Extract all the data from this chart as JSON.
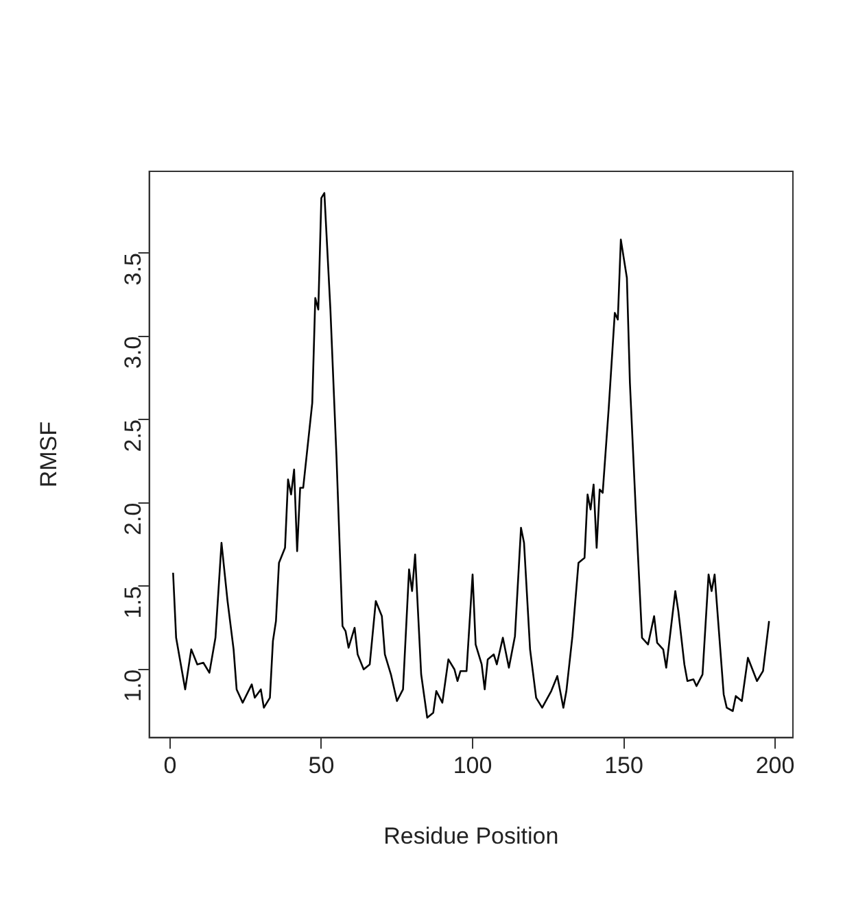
{
  "chart_data": {
    "type": "line",
    "xlabel": "Residue Position",
    "ylabel": "RMSF",
    "xlim": [
      -6.88,
      205.88
    ],
    "ylim": [
      0.59,
      3.99
    ],
    "xticks": [
      0,
      50,
      100,
      150,
      200
    ],
    "yticks": [
      {
        "value": 1,
        "label": "1.0"
      },
      1.5,
      {
        "value": 2,
        "label": "2.0"
      },
      2.5,
      {
        "value": 3,
        "label": "3.0"
      },
      3.5
    ],
    "grid": false,
    "legend": false,
    "marker": "none",
    "line_style": "solid",
    "series": [
      {
        "color": "#000000",
        "x": [
          1,
          2,
          5,
          7,
          9,
          11,
          13,
          15,
          17,
          19,
          21,
          22,
          24,
          27,
          28,
          30,
          31,
          33,
          34,
          35,
          36,
          38,
          39,
          40,
          41,
          42,
          43,
          44,
          47,
          48,
          49,
          50,
          51,
          53,
          55,
          57,
          58,
          59,
          61,
          62,
          64,
          66,
          68,
          70,
          71,
          73,
          75,
          77,
          79,
          80,
          81,
          83,
          85,
          87,
          88,
          90,
          92,
          94,
          95,
          96,
          98,
          100,
          101,
          103,
          104,
          105,
          107,
          108,
          110,
          112,
          114,
          116,
          117,
          119,
          121,
          123,
          126,
          128,
          130,
          131,
          133,
          135,
          137,
          138,
          139,
          140,
          141,
          142,
          143,
          145,
          147,
          148,
          149,
          151,
          152,
          154,
          156,
          158,
          160,
          161,
          163,
          164,
          167,
          168,
          170,
          171,
          173,
          174,
          176,
          178,
          179,
          180,
          183,
          184,
          186,
          187,
          189,
          191,
          194,
          196,
          198
        ],
        "values": [
          1.58,
          1.19,
          0.88,
          1.12,
          1.03,
          1.04,
          0.98,
          1.19,
          1.76,
          1.41,
          1.12,
          0.88,
          0.8,
          0.91,
          0.83,
          0.88,
          0.77,
          0.83,
          1.17,
          1.29,
          1.64,
          1.73,
          2.14,
          2.05,
          2.2,
          1.71,
          2.09,
          2.09,
          2.6,
          3.23,
          3.16,
          3.83,
          3.86,
          3.16,
          2.28,
          1.26,
          1.23,
          1.13,
          1.25,
          1.09,
          1.0,
          1.03,
          1.41,
          1.32,
          1.09,
          0.97,
          0.81,
          0.88,
          1.6,
          1.47,
          1.69,
          0.97,
          0.71,
          0.74,
          0.87,
          0.8,
          1.06,
          1.0,
          0.93,
          0.99,
          0.99,
          1.57,
          1.15,
          1.03,
          0.88,
          1.06,
          1.09,
          1.03,
          1.19,
          1.01,
          1.2,
          1.85,
          1.76,
          1.12,
          0.83,
          0.77,
          0.87,
          0.96,
          0.77,
          0.87,
          1.2,
          1.64,
          1.67,
          2.05,
          1.96,
          2.11,
          1.73,
          2.08,
          2.06,
          2.57,
          3.14,
          3.1,
          3.58,
          3.35,
          2.72,
          1.93,
          1.19,
          1.15,
          1.32,
          1.16,
          1.12,
          1.01,
          1.47,
          1.35,
          1.03,
          0.93,
          0.94,
          0.9,
          0.97,
          1.57,
          1.47,
          1.57,
          0.85,
          0.77,
          0.75,
          0.84,
          0.81,
          1.07,
          0.93,
          0.99,
          1.29
        ]
      }
    ]
  }
}
